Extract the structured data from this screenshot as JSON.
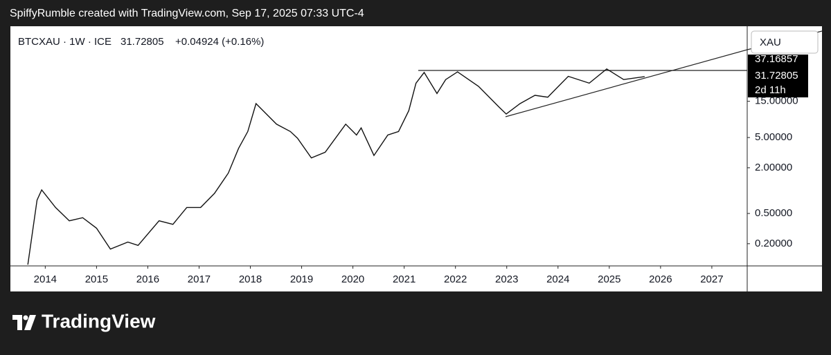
{
  "header": {
    "text": "SpiffyRumble created with TradingView.com, Sep 17, 2025 07:33 UTC-4"
  },
  "chart_data": {
    "type": "line",
    "symbol": "BTCXAU · 1W · ICE",
    "last_price": "31.72805",
    "change": "+0.04924 (+0.16%)",
    "currency": "XAU",
    "line_label": "37.16857",
    "price_label": "31.72805",
    "countdown": "2d 11h",
    "log_scale": true,
    "color": "#111111",
    "x": [
      2013.66,
      2013.84,
      2013.93,
      2014.2,
      2014.47,
      2014.73,
      2015.0,
      2015.27,
      2015.61,
      2015.81,
      2016.22,
      2016.49,
      2016.76,
      2017.03,
      2017.3,
      2017.57,
      2017.77,
      2017.95,
      2018.11,
      2018.51,
      2018.78,
      2018.92,
      2019.19,
      2019.46,
      2019.86,
      2020.07,
      2020.16,
      2020.41,
      2020.68,
      2020.89,
      2021.09,
      2021.23,
      2021.39,
      2021.64,
      2021.81,
      2022.04,
      2022.45,
      2022.85,
      2022.99,
      2023.26,
      2023.55,
      2023.8,
      2024.2,
      2024.61,
      2024.95,
      2025.28,
      2025.69
    ],
    "values": [
      0.106,
      0.75,
      1.02,
      0.6,
      0.4,
      0.44,
      0.32,
      0.17,
      0.21,
      0.19,
      0.4,
      0.36,
      0.6,
      0.6,
      0.92,
      1.7,
      3.6,
      6,
      14,
      7.5,
      6,
      4.9,
      2.7,
      3.2,
      7.5,
      5.4,
      6.7,
      2.9,
      5.4,
      6,
      11.3,
      26,
      36,
      19,
      29,
      36.6,
      23.6,
      12.6,
      10.2,
      14,
      18,
      17,
      32,
      26,
      40,
      29,
      31.7
    ],
    "xlim": [
      2013.32,
      2027.69
    ],
    "xticks": [
      2014,
      2015,
      2016,
      2017,
      2018,
      2019,
      2020,
      2021,
      2022,
      2023,
      2024,
      2025,
      2026,
      2027
    ],
    "ylim": [
      0.102,
      146
    ],
    "yticks": [
      {
        "value": 0.2,
        "label": "0.20000"
      },
      {
        "value": 0.5,
        "label": "0.50000"
      },
      {
        "value": 2,
        "label": "2.00000"
      },
      {
        "value": 5,
        "label": "5.00000"
      },
      {
        "value": 15,
        "label": "15.00000"
      }
    ]
  },
  "footer": {
    "brand": "TradingView"
  }
}
